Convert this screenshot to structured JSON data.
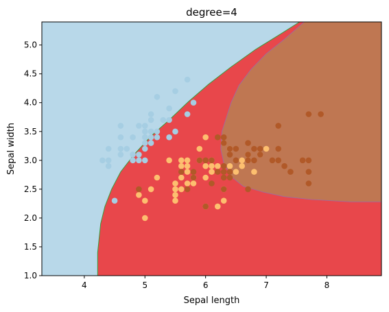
{
  "chart_data": {
    "type": "scatter",
    "title": "degree=4",
    "xlabel": "Sepal length",
    "ylabel": "Sepal width",
    "xlim": [
      3.3,
      8.9
    ],
    "ylim": [
      1.0,
      5.4
    ],
    "xticks": [
      "4",
      "5",
      "6",
      "7",
      "8"
    ],
    "yticks": [
      "1.0",
      "1.5",
      "2.0",
      "2.5",
      "3.0",
      "3.5",
      "4.0",
      "4.5",
      "5.0"
    ],
    "grid": false,
    "legend": "none",
    "background_regions": [
      {
        "class": "setosa",
        "color": "#b8d8e9"
      },
      {
        "class": "versicolor",
        "color": "#e8474b"
      },
      {
        "class": "virginica",
        "color": "#bf7752"
      }
    ],
    "series": [
      {
        "color": "#a6cee3",
        "points": [
          [
            4.3,
            3.0
          ],
          [
            4.4,
            2.9
          ],
          [
            4.4,
            3.0
          ],
          [
            4.4,
            3.2
          ],
          [
            4.5,
            2.3
          ],
          [
            4.6,
            3.1
          ],
          [
            4.6,
            3.2
          ],
          [
            4.6,
            3.4
          ],
          [
            4.6,
            3.6
          ],
          [
            4.7,
            3.2
          ],
          [
            4.8,
            3.0
          ],
          [
            4.8,
            3.1
          ],
          [
            4.8,
            3.4
          ],
          [
            4.9,
            3.0
          ],
          [
            4.9,
            3.1
          ],
          [
            4.9,
            3.6
          ],
          [
            5.0,
            3.0
          ],
          [
            5.0,
            3.2
          ],
          [
            5.0,
            3.3
          ],
          [
            5.0,
            3.4
          ],
          [
            5.0,
            3.5
          ],
          [
            5.0,
            3.6
          ],
          [
            5.1,
            3.3
          ],
          [
            5.1,
            3.4
          ],
          [
            5.1,
            3.5
          ],
          [
            5.1,
            3.7
          ],
          [
            5.1,
            3.8
          ],
          [
            5.2,
            3.4
          ],
          [
            5.2,
            3.5
          ],
          [
            5.2,
            4.1
          ],
          [
            5.3,
            3.7
          ],
          [
            5.4,
            3.4
          ],
          [
            5.4,
            3.7
          ],
          [
            5.4,
            3.9
          ],
          [
            5.5,
            3.5
          ],
          [
            5.5,
            4.2
          ],
          [
            5.7,
            3.8
          ],
          [
            5.7,
            4.4
          ],
          [
            5.8,
            4.0
          ]
        ]
      },
      {
        "color": "#fdbf6f",
        "points": [
          [
            4.9,
            2.4
          ],
          [
            5.0,
            2.0
          ],
          [
            5.0,
            2.3
          ],
          [
            5.1,
            2.5
          ],
          [
            5.2,
            2.7
          ],
          [
            5.4,
            3.0
          ],
          [
            5.5,
            2.3
          ],
          [
            5.5,
            2.4
          ],
          [
            5.5,
            2.5
          ],
          [
            5.5,
            2.6
          ],
          [
            5.6,
            2.5
          ],
          [
            5.6,
            2.7
          ],
          [
            5.6,
            2.9
          ],
          [
            5.6,
            3.0
          ],
          [
            5.7,
            2.6
          ],
          [
            5.7,
            2.8
          ],
          [
            5.7,
            2.9
          ],
          [
            5.7,
            3.0
          ],
          [
            5.8,
            2.6
          ],
          [
            5.8,
            2.7
          ],
          [
            5.9,
            3.0
          ],
          [
            5.9,
            3.2
          ],
          [
            6.0,
            2.2
          ],
          [
            6.0,
            2.7
          ],
          [
            6.0,
            2.9
          ],
          [
            6.0,
            3.4
          ],
          [
            6.1,
            2.8
          ],
          [
            6.1,
            2.9
          ],
          [
            6.1,
            3.0
          ],
          [
            6.2,
            2.2
          ],
          [
            6.2,
            2.9
          ],
          [
            6.3,
            2.3
          ],
          [
            6.3,
            2.5
          ],
          [
            6.3,
            3.3
          ],
          [
            6.4,
            2.9
          ],
          [
            6.4,
            3.2
          ],
          [
            6.5,
            2.8
          ],
          [
            6.6,
            2.9
          ],
          [
            6.6,
            3.0
          ],
          [
            6.7,
            3.0
          ],
          [
            6.7,
            3.1
          ],
          [
            6.8,
            2.8
          ],
          [
            6.9,
            3.1
          ],
          [
            7.0,
            3.2
          ]
        ]
      },
      {
        "color": "#b15928",
        "points": [
          [
            4.9,
            2.5
          ],
          [
            5.6,
            2.8
          ],
          [
            5.7,
            2.5
          ],
          [
            5.8,
            2.7
          ],
          [
            5.8,
            2.8
          ],
          [
            5.9,
            3.0
          ],
          [
            6.0,
            2.2
          ],
          [
            6.0,
            3.0
          ],
          [
            6.1,
            2.6
          ],
          [
            6.1,
            3.0
          ],
          [
            6.2,
            2.8
          ],
          [
            6.2,
            3.4
          ],
          [
            6.3,
            2.5
          ],
          [
            6.3,
            2.7
          ],
          [
            6.3,
            2.8
          ],
          [
            6.3,
            2.9
          ],
          [
            6.3,
            3.3
          ],
          [
            6.3,
            3.4
          ],
          [
            6.4,
            2.7
          ],
          [
            6.4,
            2.8
          ],
          [
            6.4,
            3.1
          ],
          [
            6.4,
            3.2
          ],
          [
            6.5,
            3.0
          ],
          [
            6.5,
            3.2
          ],
          [
            6.7,
            2.5
          ],
          [
            6.7,
            3.0
          ],
          [
            6.7,
            3.1
          ],
          [
            6.7,
            3.3
          ],
          [
            6.8,
            3.0
          ],
          [
            6.8,
            3.2
          ],
          [
            6.9,
            3.1
          ],
          [
            6.9,
            3.2
          ],
          [
            7.1,
            3.0
          ],
          [
            7.2,
            3.0
          ],
          [
            7.2,
            3.2
          ],
          [
            7.2,
            3.6
          ],
          [
            7.3,
            2.9
          ],
          [
            7.4,
            2.8
          ],
          [
            7.6,
            3.0
          ],
          [
            7.7,
            2.6
          ],
          [
            7.7,
            2.8
          ],
          [
            7.7,
            3.0
          ],
          [
            7.7,
            3.8
          ],
          [
            7.9,
            3.8
          ]
        ]
      }
    ]
  }
}
